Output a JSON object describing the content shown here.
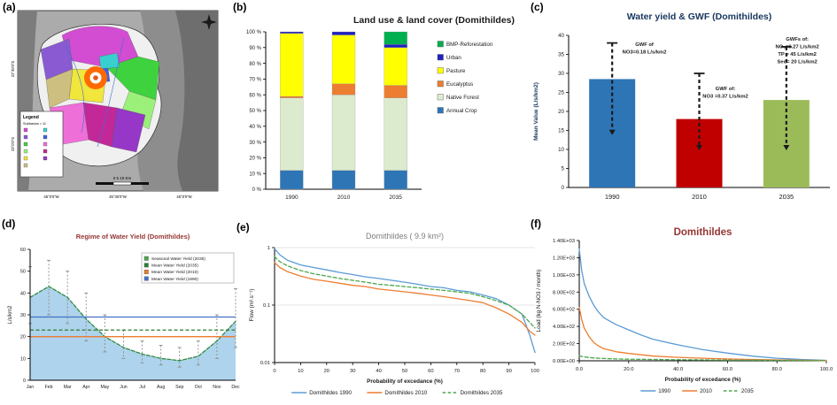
{
  "panels": {
    "a": {
      "label": "(a)"
    },
    "b": {
      "label": "(b)"
    },
    "c": {
      "label": "(c)"
    },
    "d": {
      "label": "(d)"
    },
    "e": {
      "label": "(e)"
    },
    "f": {
      "label": "(f)"
    }
  },
  "map": {
    "legend_title": "Legend",
    "subbasins_label": "Subbasins = 11",
    "scale_text": "0    5    10 Km",
    "x_ticks": [
      "46°0'0\"W",
      "45°30'0\"W",
      "45°0'0\"W"
    ],
    "y_ticks": [
      "22°30'0\"S",
      "23°0'0\"S"
    ],
    "subbasin_colors": [
      "#D24DD2",
      "#8A5AD2",
      "#3FD23F",
      "#9BF07A",
      "#F0E63C",
      "#CDBF7F",
      "#39CFCF",
      "#3F5FE8",
      "#EF6FD8",
      "#C32898",
      "#9637C8"
    ]
  },
  "chart_data": [
    {
      "panel": "b",
      "type": "bar",
      "stacked": true,
      "title": "Land use & land cover (Domithildes)",
      "categories": [
        "1990",
        "2010",
        "2035"
      ],
      "unit": "%",
      "series": [
        {
          "name": "Annual Crop",
          "color": "#2E75B6",
          "values": [
            12,
            12,
            12
          ]
        },
        {
          "name": "Native Forest",
          "color": "#DCEBCE",
          "values": [
            46,
            48,
            46
          ]
        },
        {
          "name": "Eucalyptus",
          "color": "#ED7D31",
          "values": [
            1,
            7,
            8
          ]
        },
        {
          "name": "Pasture",
          "color": "#FFFF00",
          "values": [
            40,
            31,
            24
          ]
        },
        {
          "name": "Urban",
          "color": "#2020C0",
          "values": [
            1,
            2,
            2
          ]
        },
        {
          "name": "BMP-Reforestation",
          "color": "#00B050",
          "values": [
            0,
            0,
            8
          ]
        }
      ],
      "legend_order": [
        "BMP-Reforestation",
        "Urban",
        "Pasture",
        "Eucalyptus",
        "Native Forest",
        "Annual Crop"
      ],
      "y_ticks": [
        0,
        10,
        20,
        30,
        40,
        50,
        60,
        70,
        80,
        90,
        100
      ],
      "y_tick_labels": [
        "0 %",
        "10 %",
        "20 %",
        "30 %",
        "40 %",
        "50 %",
        "60 %",
        "70 %",
        "80 %",
        "90 %",
        "100 %"
      ],
      "ylim": [
        0,
        100
      ]
    },
    {
      "panel": "c",
      "type": "bar",
      "title": "Water yield & GWF (Domithildes)",
      "ylabel": "Mean Value (L/s/km2)",
      "categories": [
        "1990",
        "2010",
        "2035"
      ],
      "values": [
        28.5,
        18,
        23
      ],
      "bar_colors": [
        "#2E75B6",
        "#C00000",
        "#9BBB59"
      ],
      "error_high": [
        38,
        30,
        37
      ],
      "error_low": [
        14,
        10,
        10
      ],
      "ylim": [
        0,
        40
      ],
      "y_ticks": [
        0,
        5,
        10,
        15,
        20,
        25,
        30,
        35,
        40
      ],
      "annotations": [
        {
          "lines": [
            "GWF of",
            "NO3=0.18 L/s/km2"
          ]
        },
        {
          "lines": [
            "GWFs of:",
            "NO₃=0.27 L/s/km2",
            "TP = 45 L/s/km2",
            "Sed= 20 L/s/km2"
          ]
        },
        {
          "lines": [
            "GWF of:",
            "NO3 =0.37 L/s/km2"
          ]
        }
      ]
    },
    {
      "panel": "d",
      "type": "area-line",
      "title": "Regime of Water Yield (Domithildes)",
      "ylabel": "L/s/km2",
      "categories": [
        "Jan",
        "Feb",
        "Mar",
        "Apr",
        "May",
        "Jun",
        "Jul",
        "Aug",
        "Sep",
        "Oct",
        "Nov",
        "Dec"
      ],
      "seasonal_2035": [
        38,
        43,
        38,
        28,
        20,
        15,
        12,
        10,
        9,
        11,
        18,
        27
      ],
      "error_high": [
        52,
        55,
        50,
        40,
        30,
        23,
        18,
        16,
        15,
        18,
        30,
        42
      ],
      "error_low": [
        26,
        30,
        26,
        18,
        13,
        10,
        8,
        7,
        6,
        7,
        10,
        15
      ],
      "mean_lines": [
        {
          "name": "Mean Water Yield (1990)",
          "value": 29,
          "color": "#4472C4",
          "dash": false
        },
        {
          "name": "Mean Water Yield (2035)",
          "value": 23,
          "color": "#2E7D32",
          "dash": true
        },
        {
          "name": "Mean Water Yield (2010)",
          "value": 20,
          "color": "#ED7D31",
          "dash": false
        }
      ],
      "legend": [
        "Seasonal Water Yield (2035)",
        "Mean Water Yield (2035)",
        "Mean Water Yield (2010)",
        "Mean Water Yield (1990)"
      ],
      "legend_colors": [
        "#4CA64C",
        "#2E7D32",
        "#ED7D31",
        "#4472C4"
      ],
      "ylim": [
        0,
        60
      ],
      "y_ticks": [
        0,
        10,
        20,
        30,
        40,
        50,
        60
      ],
      "area_color": "#AED3EC",
      "seasonal_line_color": "#2E8B42"
    },
    {
      "panel": "e",
      "type": "line",
      "title": "Domithildes ( 9.9 km²)",
      "ylabel": "Flow (m³.s⁻¹)",
      "xlabel": "Probability of excedance (%)",
      "y_scale": "log",
      "ylim": [
        0.01,
        1
      ],
      "y_ticks": [
        0.01,
        0.1,
        1
      ],
      "y_tick_labels": [
        "0.01",
        "0.1",
        "1"
      ],
      "x_ticks": [
        0,
        10,
        20,
        30,
        40,
        50,
        60,
        70,
        80,
        90,
        100
      ],
      "x": [
        0,
        2,
        5,
        10,
        15,
        20,
        25,
        30,
        35,
        40,
        45,
        50,
        55,
        60,
        65,
        70,
        75,
        80,
        85,
        90,
        95,
        98,
        100
      ],
      "series": [
        {
          "name": "Domithildes 1990",
          "color": "#5B9BD5",
          "dash": false,
          "values": [
            0.95,
            0.75,
            0.6,
            0.5,
            0.45,
            0.41,
            0.37,
            0.34,
            0.31,
            0.29,
            0.27,
            0.25,
            0.23,
            0.21,
            0.2,
            0.18,
            0.17,
            0.15,
            0.13,
            0.1,
            0.07,
            0.03,
            0.015
          ]
        },
        {
          "name": "Domithildes 2010",
          "color": "#ED7D31",
          "dash": false,
          "values": [
            0.55,
            0.45,
            0.38,
            0.32,
            0.28,
            0.26,
            0.24,
            0.22,
            0.21,
            0.19,
            0.18,
            0.17,
            0.16,
            0.15,
            0.14,
            0.13,
            0.12,
            0.11,
            0.09,
            0.07,
            0.05,
            0.035,
            0.03
          ]
        },
        {
          "name": "Domithildes 2035",
          "color": "#4CA64C",
          "dash": true,
          "values": [
            0.7,
            0.57,
            0.48,
            0.4,
            0.35,
            0.32,
            0.29,
            0.27,
            0.25,
            0.23,
            0.22,
            0.21,
            0.2,
            0.19,
            0.18,
            0.17,
            0.16,
            0.14,
            0.12,
            0.1,
            0.07,
            0.05,
            0.04
          ]
        }
      ]
    },
    {
      "panel": "f",
      "type": "line",
      "title": "Domithildes",
      "ylabel": "Load (kg N-NO3 / month)",
      "xlabel": "Probability of excedance (%)",
      "y_scale": "linear",
      "ylim": [
        0,
        1400
      ],
      "y_ticks": [
        0,
        200,
        400,
        600,
        800,
        1000,
        1200,
        1400
      ],
      "y_tick_labels": [
        "0.00E+00",
        "2.00E+02",
        "4.00E+02",
        "6.00E+02",
        "8.00E+02",
        "1.00E+03",
        "1.20E+03",
        "1.40E+03"
      ],
      "x_ticks": [
        0,
        20,
        40,
        60,
        80,
        100
      ],
      "x_tick_labels": [
        "0.0",
        "20.0",
        "40.0",
        "60.0",
        "80.0",
        "100.0"
      ],
      "x": [
        0,
        1,
        2,
        4,
        6,
        8,
        10,
        15,
        20,
        25,
        30,
        40,
        50,
        60,
        70,
        80,
        90,
        100
      ],
      "series": [
        {
          "name": "1990",
          "color": "#5B9BD5",
          "dash": false,
          "values": [
            1300,
            1050,
            900,
            750,
            640,
            560,
            500,
            420,
            360,
            300,
            250,
            185,
            130,
            90,
            55,
            30,
            15,
            5
          ]
        },
        {
          "name": "2010",
          "color": "#ED7D31",
          "dash": false,
          "values": [
            620,
            480,
            380,
            280,
            210,
            170,
            140,
            105,
            85,
            70,
            55,
            40,
            30,
            22,
            15,
            10,
            6,
            3
          ]
        },
        {
          "name": "2035",
          "color": "#4CA64C",
          "dash": true,
          "values": [
            60,
            50,
            45,
            38,
            33,
            30,
            27,
            22,
            19,
            17,
            15,
            12,
            10,
            8,
            7,
            5,
            4,
            3
          ]
        }
      ]
    }
  ]
}
